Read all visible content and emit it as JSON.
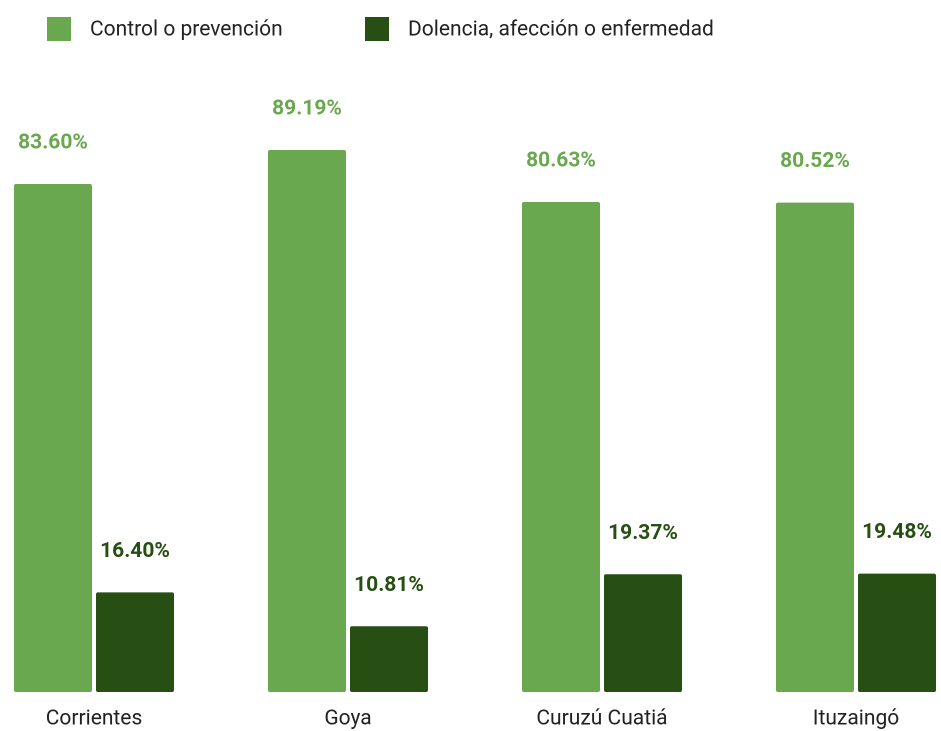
{
  "chart_data": {
    "type": "bar",
    "categories": [
      "Corrientes",
      "Goya",
      "Curuzú Cuatiá",
      "Ituzaingó"
    ],
    "series": [
      {
        "name": "Control o prevención",
        "color": "#6aa84f",
        "values": [
          83.6,
          89.19,
          80.63,
          80.52
        ],
        "value_labels": [
          "83.60%",
          "89.19%",
          "80.63%",
          "80.52%"
        ]
      },
      {
        "name": "Dolencia, afección o enfermedad",
        "color": "#274e13",
        "values": [
          16.4,
          10.81,
          19.37,
          19.48
        ],
        "value_labels": [
          "16.40%",
          "10.81%",
          "19.37%",
          "19.48%"
        ]
      }
    ],
    "legend": "top"
  }
}
